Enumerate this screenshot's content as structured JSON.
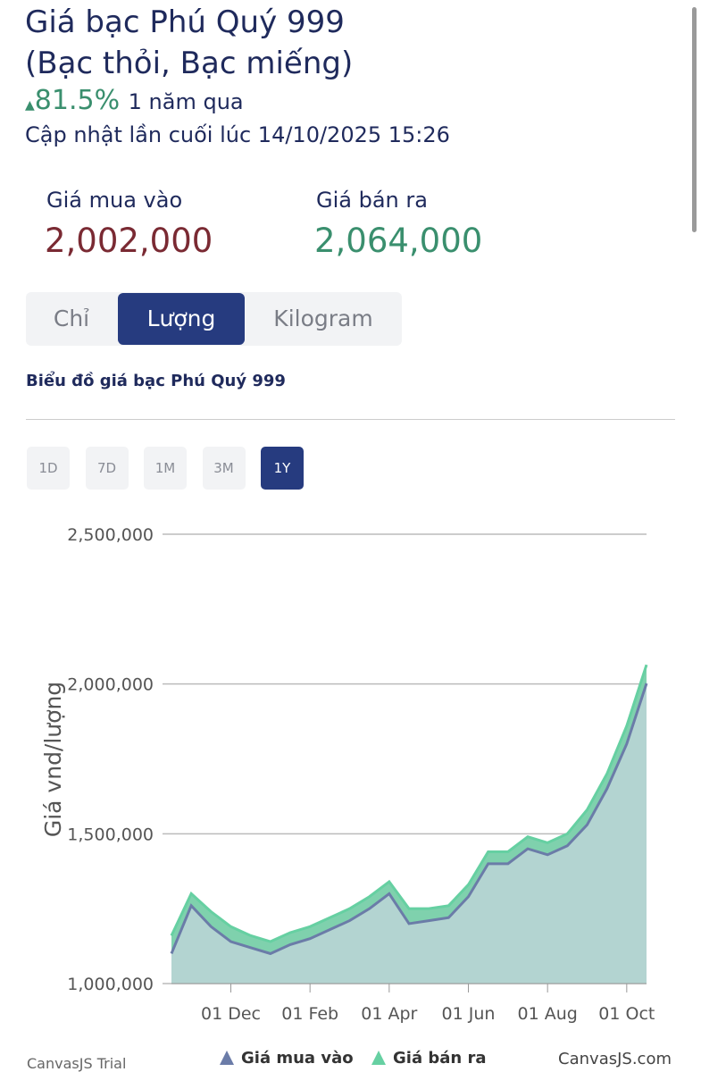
{
  "header": {
    "title_lines": [
      "Giá bạc Phú Quý 999",
      "(Bạc thỏi, Bạc miếng)"
    ],
    "change": "81.5%",
    "change_period": "1 năm qua",
    "updated": "Cập nhật lần cuối lúc 14/10/2025 15:26"
  },
  "prices": {
    "buy": {
      "label": "Giá mua vào",
      "value": "2,002,000"
    },
    "sell": {
      "label": "Giá bán ra",
      "value": "2,064,000"
    }
  },
  "unit_tabs": {
    "items": [
      "Chỉ",
      "Lượng",
      "Kilogram"
    ],
    "active_index": 1
  },
  "chart_heading": "Biểu đồ giá bạc Phú Quý 999",
  "range_tabs": {
    "items": [
      "1D",
      "7D",
      "1M",
      "3M",
      "1Y"
    ],
    "active_index": 4
  },
  "chart_data": {
    "type": "area",
    "y_label": "Giá vnd/lượng",
    "x": [
      "15 Oct",
      "01 Nov",
      "15 Nov",
      "01 Dec",
      "15 Dec",
      "01 Jan",
      "15 Jan",
      "01 Feb",
      "15 Feb",
      "01 Mar",
      "15 Mar",
      "01 Apr",
      "15 Apr",
      "01 May",
      "15 May",
      "01 Jun",
      "15 Jun",
      "01 Jul",
      "15 Jul",
      "01 Aug",
      "15 Aug",
      "01 Sep",
      "15 Sep",
      "01 Oct",
      "14 Oct"
    ],
    "series": [
      {
        "name": "Giá mua vào",
        "color": "#6b7ca8",
        "fill": "#b3d4d1",
        "values": [
          1100000,
          1260000,
          1190000,
          1140000,
          1120000,
          1100000,
          1130000,
          1150000,
          1180000,
          1210000,
          1250000,
          1300000,
          1200000,
          1210000,
          1220000,
          1290000,
          1400000,
          1400000,
          1450000,
          1430000,
          1460000,
          1530000,
          1650000,
          1800000,
          2002000
        ]
      },
      {
        "name": "Giá bán ra",
        "color": "#66d0a2",
        "fill": "#7fd1ad",
        "values": [
          1160000,
          1300000,
          1240000,
          1190000,
          1160000,
          1140000,
          1170000,
          1190000,
          1220000,
          1250000,
          1290000,
          1340000,
          1250000,
          1250000,
          1260000,
          1330000,
          1440000,
          1440000,
          1490000,
          1470000,
          1500000,
          1580000,
          1700000,
          1860000,
          2064000
        ]
      }
    ],
    "ylim": [
      1000000,
      2500000
    ],
    "yticks": [
      {
        "value": 1000000,
        "label": "1,000,000"
      },
      {
        "value": 1500000,
        "label": "1,500,000"
      },
      {
        "value": 2000000,
        "label": "2,000,000"
      },
      {
        "value": 2500000,
        "label": "2,500,000"
      }
    ],
    "xticks": [
      "01 Dec",
      "01 Feb",
      "01 Apr",
      "01 Jun",
      "01 Aug",
      "01 Oct"
    ],
    "grid": true
  },
  "watermarks": {
    "left": "CanvasJS Trial",
    "right": "CanvasJS.com"
  }
}
